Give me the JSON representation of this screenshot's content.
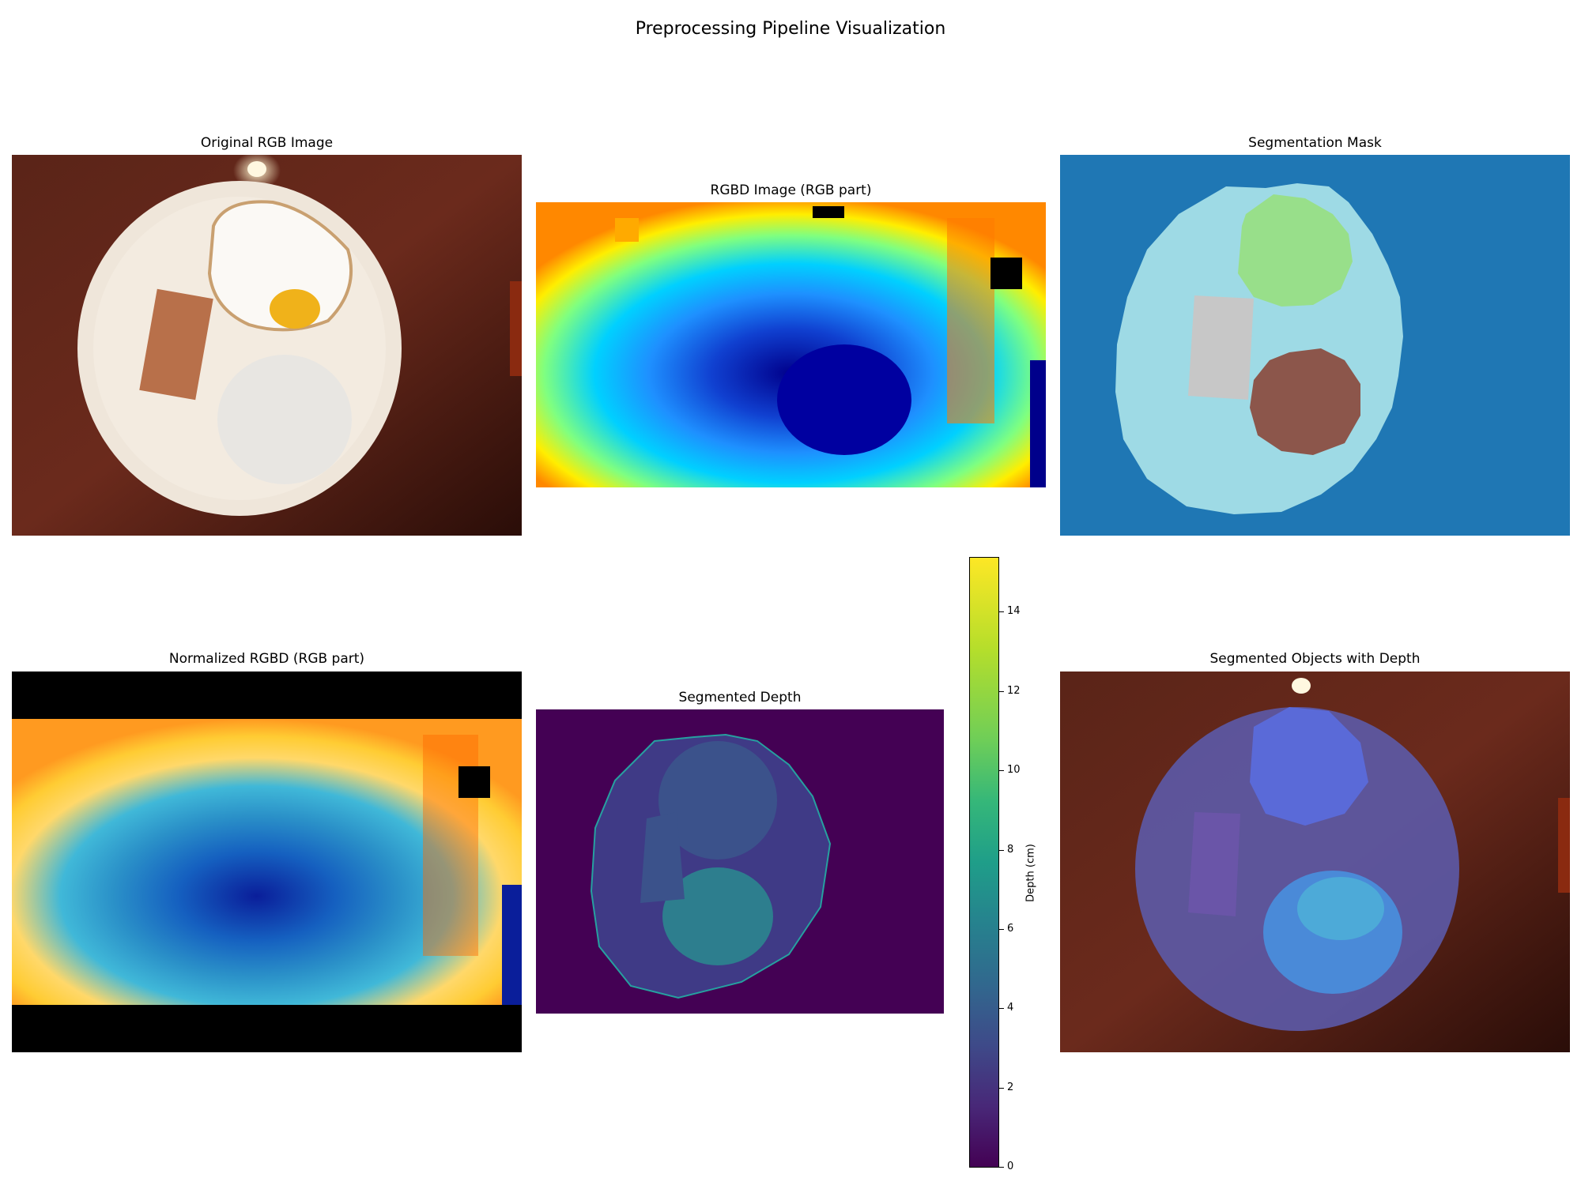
{
  "figure": {
    "title": "Preprocessing Pipeline Visualization"
  },
  "panels": {
    "original_rgb": {
      "title": "Original RGB Image"
    },
    "rgbd": {
      "title": "RGBD Image (RGB part)"
    },
    "segmentation_mask": {
      "title": "Segmentation Mask"
    },
    "normalized_rgbd": {
      "title": "Normalized RGBD (RGB part)"
    },
    "segmented_depth": {
      "title": "Segmented Depth"
    },
    "segmented_overlay": {
      "title": "Segmented Objects with Depth"
    }
  },
  "colorbar": {
    "label": "Depth (cm)",
    "ticks": [
      "0",
      "2",
      "4",
      "6",
      "8",
      "10",
      "12",
      "14"
    ],
    "range": [
      0,
      15.5
    ],
    "colormap": "viridis"
  },
  "colors": {
    "mask_background": "#1f77b4",
    "mask_plate": "#9edae5",
    "mask_egg": "#98df8a",
    "mask_rice": "#8c564b",
    "mask_meat": "#c7c7c7",
    "depth_background": "#440154"
  }
}
